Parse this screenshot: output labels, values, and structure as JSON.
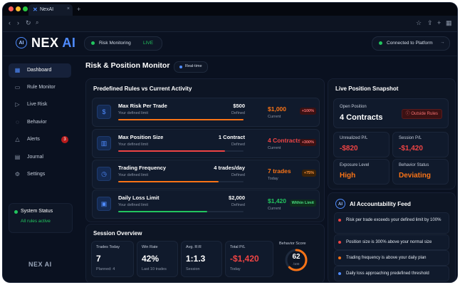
{
  "browser": {
    "tab_title": "NexAI",
    "tab_close": "×",
    "new_tab": "+"
  },
  "colors": {
    "accent": "#4f8cff",
    "danger": "#ef4444",
    "warning": "#f97316",
    "success": "#22c55e",
    "background": "#0a1120"
  },
  "header": {
    "logo_main": "NEX",
    "logo_ai": "AI",
    "logo_mark": "AI",
    "monitoring_label": "Risk Monitoring",
    "monitoring_status": "LIVE",
    "connection": "Connected to Platform"
  },
  "sidebar": {
    "items": [
      {
        "label": "Dashboard",
        "icon": "grid-icon"
      },
      {
        "label": "Rule Monitor",
        "icon": "monitor-icon"
      },
      {
        "label": "Live Risk",
        "icon": "play-icon"
      },
      {
        "label": "Behavior",
        "icon": "brain-icon"
      },
      {
        "label": "Alerts",
        "icon": "warning-icon",
        "badge": "3"
      },
      {
        "label": "Journal",
        "icon": "journal-icon"
      },
      {
        "label": "Settings",
        "icon": "gear-icon"
      }
    ],
    "system_status_title": "System Status",
    "system_status_text": "All rules active",
    "footer_logo": "NEX AI"
  },
  "main": {
    "title": "Risk & Position Monitor",
    "realtime": "Real-time"
  },
  "rules_panel": {
    "title": "Predefined Rules vs Current Activity",
    "rules": [
      {
        "name": "Max Risk Per Trade",
        "sub": "Your defined limit",
        "value": "$500",
        "defined": "Defined",
        "current": "$1,000",
        "current_label": "Current",
        "chip": "+100%",
        "progress": 1.0,
        "color": "#f97316",
        "chip_bg": "#3b1113",
        "chip_fg": "#f87171"
      },
      {
        "name": "Max Position Size",
        "sub": "Your defined limit",
        "value": "1 Contract",
        "defined": "Defined",
        "current": "4 Contracts",
        "current_label": "Current",
        "chip": "+300%",
        "progress": 0.85,
        "color": "#ef4444",
        "chip_bg": "#3b1113",
        "chip_fg": "#f87171"
      },
      {
        "name": "Trading Frequency",
        "sub": "Your defined limit",
        "value": "4 trades/day",
        "defined": "Defined",
        "current": "7 trades",
        "current_label": "Today",
        "chip": "+75%",
        "progress": 0.8,
        "color": "#f97316",
        "chip_bg": "#3a2208",
        "chip_fg": "#fb923c"
      },
      {
        "name": "Daily Loss Limit",
        "sub": "Your defined limit",
        "value": "$2,000",
        "defined": "Defined",
        "current": "$1,420",
        "current_label": "Current",
        "chip": "Within Limit",
        "progress": 0.71,
        "color": "#22c55e",
        "chip_bg": "#0d2e1c",
        "chip_fg": "#4ade80"
      }
    ]
  },
  "session": {
    "title": "Session Overview",
    "stats": [
      {
        "label": "Trades Today",
        "value": "7",
        "sub": "Planned: 4"
      },
      {
        "label": "Win Rate",
        "value": "42%",
        "sub": "Last 10 trades"
      },
      {
        "label": "Avg. R:R",
        "value": "1:1.3",
        "sub": "Session"
      },
      {
        "label": "Total P/L",
        "value": "-$1,420",
        "sub": "Today"
      }
    ],
    "behavior_label": "Behavior Score",
    "behavior_score": "62",
    "behavior_max": "/100",
    "behavior_fraction": 0.62
  },
  "snapshot": {
    "title": "Live Position Snapshot",
    "open_label": "Open Position",
    "open_value": "4 Contracts",
    "status": "Outside Rules",
    "cells": [
      {
        "label": "Unrealized P/L",
        "value": "-$820",
        "color": "#ef4444"
      },
      {
        "label": "Session P/L",
        "value": "-$1,420",
        "color": "#ef4444"
      },
      {
        "label": "Exposure Level",
        "value": "High",
        "color": "#f97316"
      },
      {
        "label": "Behavior Status",
        "value": "Deviating",
        "color": "#f97316"
      }
    ]
  },
  "feed": {
    "title": "AI Accountability Feed",
    "badge": "AI",
    "items": [
      {
        "text": "Risk per trade exceeds your defined limit by 100%",
        "color": "#ef4444"
      },
      {
        "text": "Position size is 300% above your normal size",
        "color": "#ef4444"
      },
      {
        "text": "Trading frequency is above your daily plan",
        "color": "#f97316"
      },
      {
        "text": "Daily loss approaching predefined threshold",
        "color": "#4f8cff"
      }
    ]
  }
}
